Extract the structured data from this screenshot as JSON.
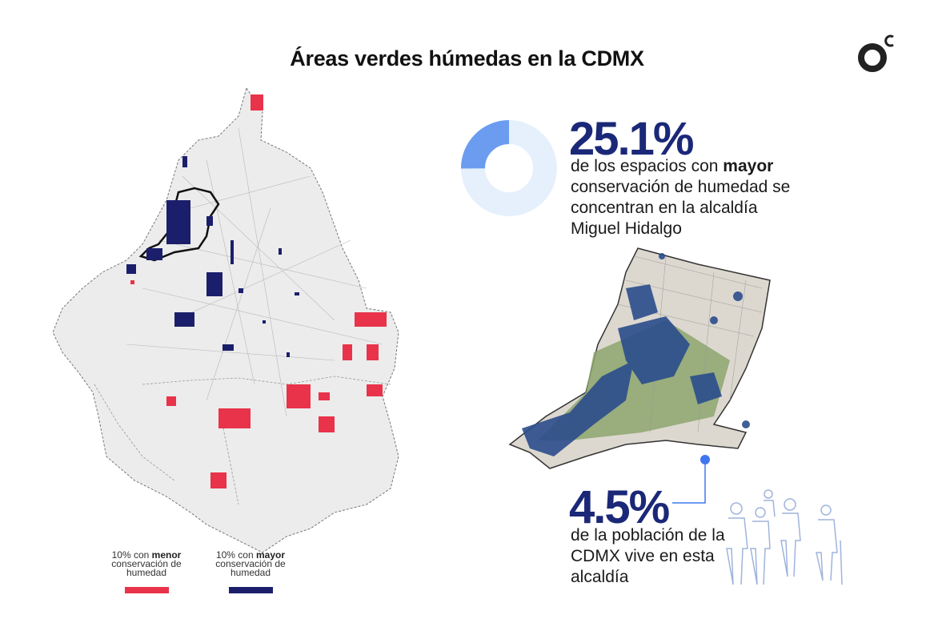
{
  "title": "Áreas verdes húmedas en la CDMX",
  "logo_icon": "brand-circle-c-icon",
  "stat_primary": {
    "value": "25.1%",
    "text_pre": "de los espacios con ",
    "text_bold": "mayor",
    "text_post": " conservación de humedad se concentran en la alcaldía Miguel Hidalgo",
    "share": 0.251
  },
  "stat_secondary": {
    "value": "4.5%",
    "text": "de la población de la CDMX vive en esta alcaldía"
  },
  "legend": {
    "low": {
      "prefix": "10% con ",
      "bold": "menor",
      "line2": "conservación de",
      "line3": "humedad",
      "color": "#e8334a"
    },
    "high": {
      "prefix": "10% con ",
      "bold": "mayor",
      "line2": "conservación de",
      "line3": "humedad",
      "color": "#1b1f6b"
    }
  },
  "colors": {
    "accent_navy": "#1b2878",
    "donut_fill": "#6b9cf0",
    "donut_track": "#e6f0fd",
    "connector": "#3f78ee",
    "people_stroke": "#9fb4dc"
  }
}
